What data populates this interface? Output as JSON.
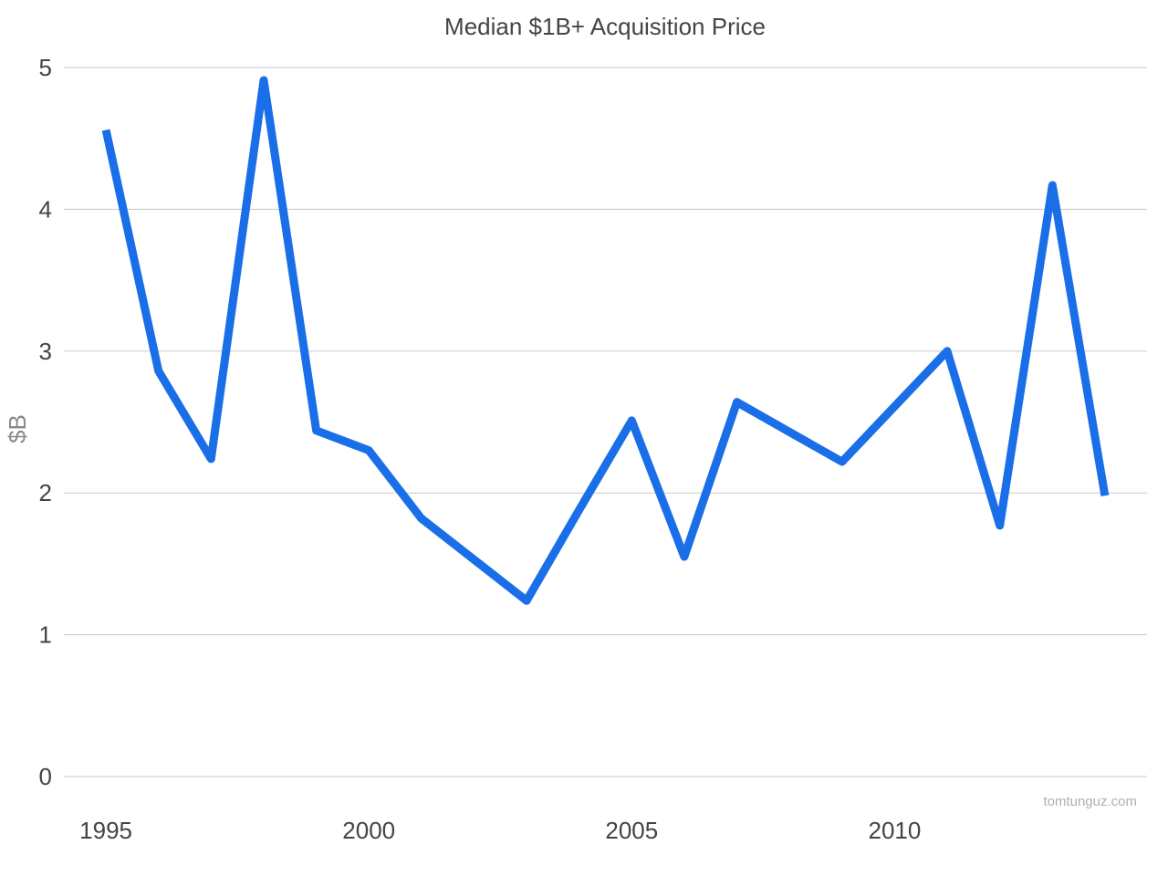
{
  "chart_data": {
    "type": "line",
    "title": "Median $1B+ Acquisition Price",
    "ylabel": "$B",
    "xlabel": "",
    "ylim": [
      0,
      5
    ],
    "xlim": [
      1994.2,
      2014.8
    ],
    "yticks": [
      0,
      1,
      2,
      3,
      4,
      5
    ],
    "xticks": [
      1995,
      2000,
      2005,
      2010
    ],
    "grid": true,
    "legend": "none",
    "series": [
      {
        "color": "#1a6fe8",
        "x": [
          1995,
          1996,
          1997,
          1998,
          1999,
          2000,
          2001,
          2002,
          2003,
          2004,
          2005,
          2006,
          2007,
          2008,
          2009,
          2010,
          2011,
          2012,
          2013,
          2014
        ],
        "y": [
          4.56,
          2.86,
          2.24,
          4.91,
          2.44,
          2.3,
          1.82,
          1.53,
          1.24,
          1.88,
          2.51,
          1.55,
          2.64,
          2.43,
          2.22,
          2.61,
          3.0,
          1.77,
          4.17,
          1.98
        ]
      }
    ],
    "watermark": "tomtunguz.com"
  }
}
